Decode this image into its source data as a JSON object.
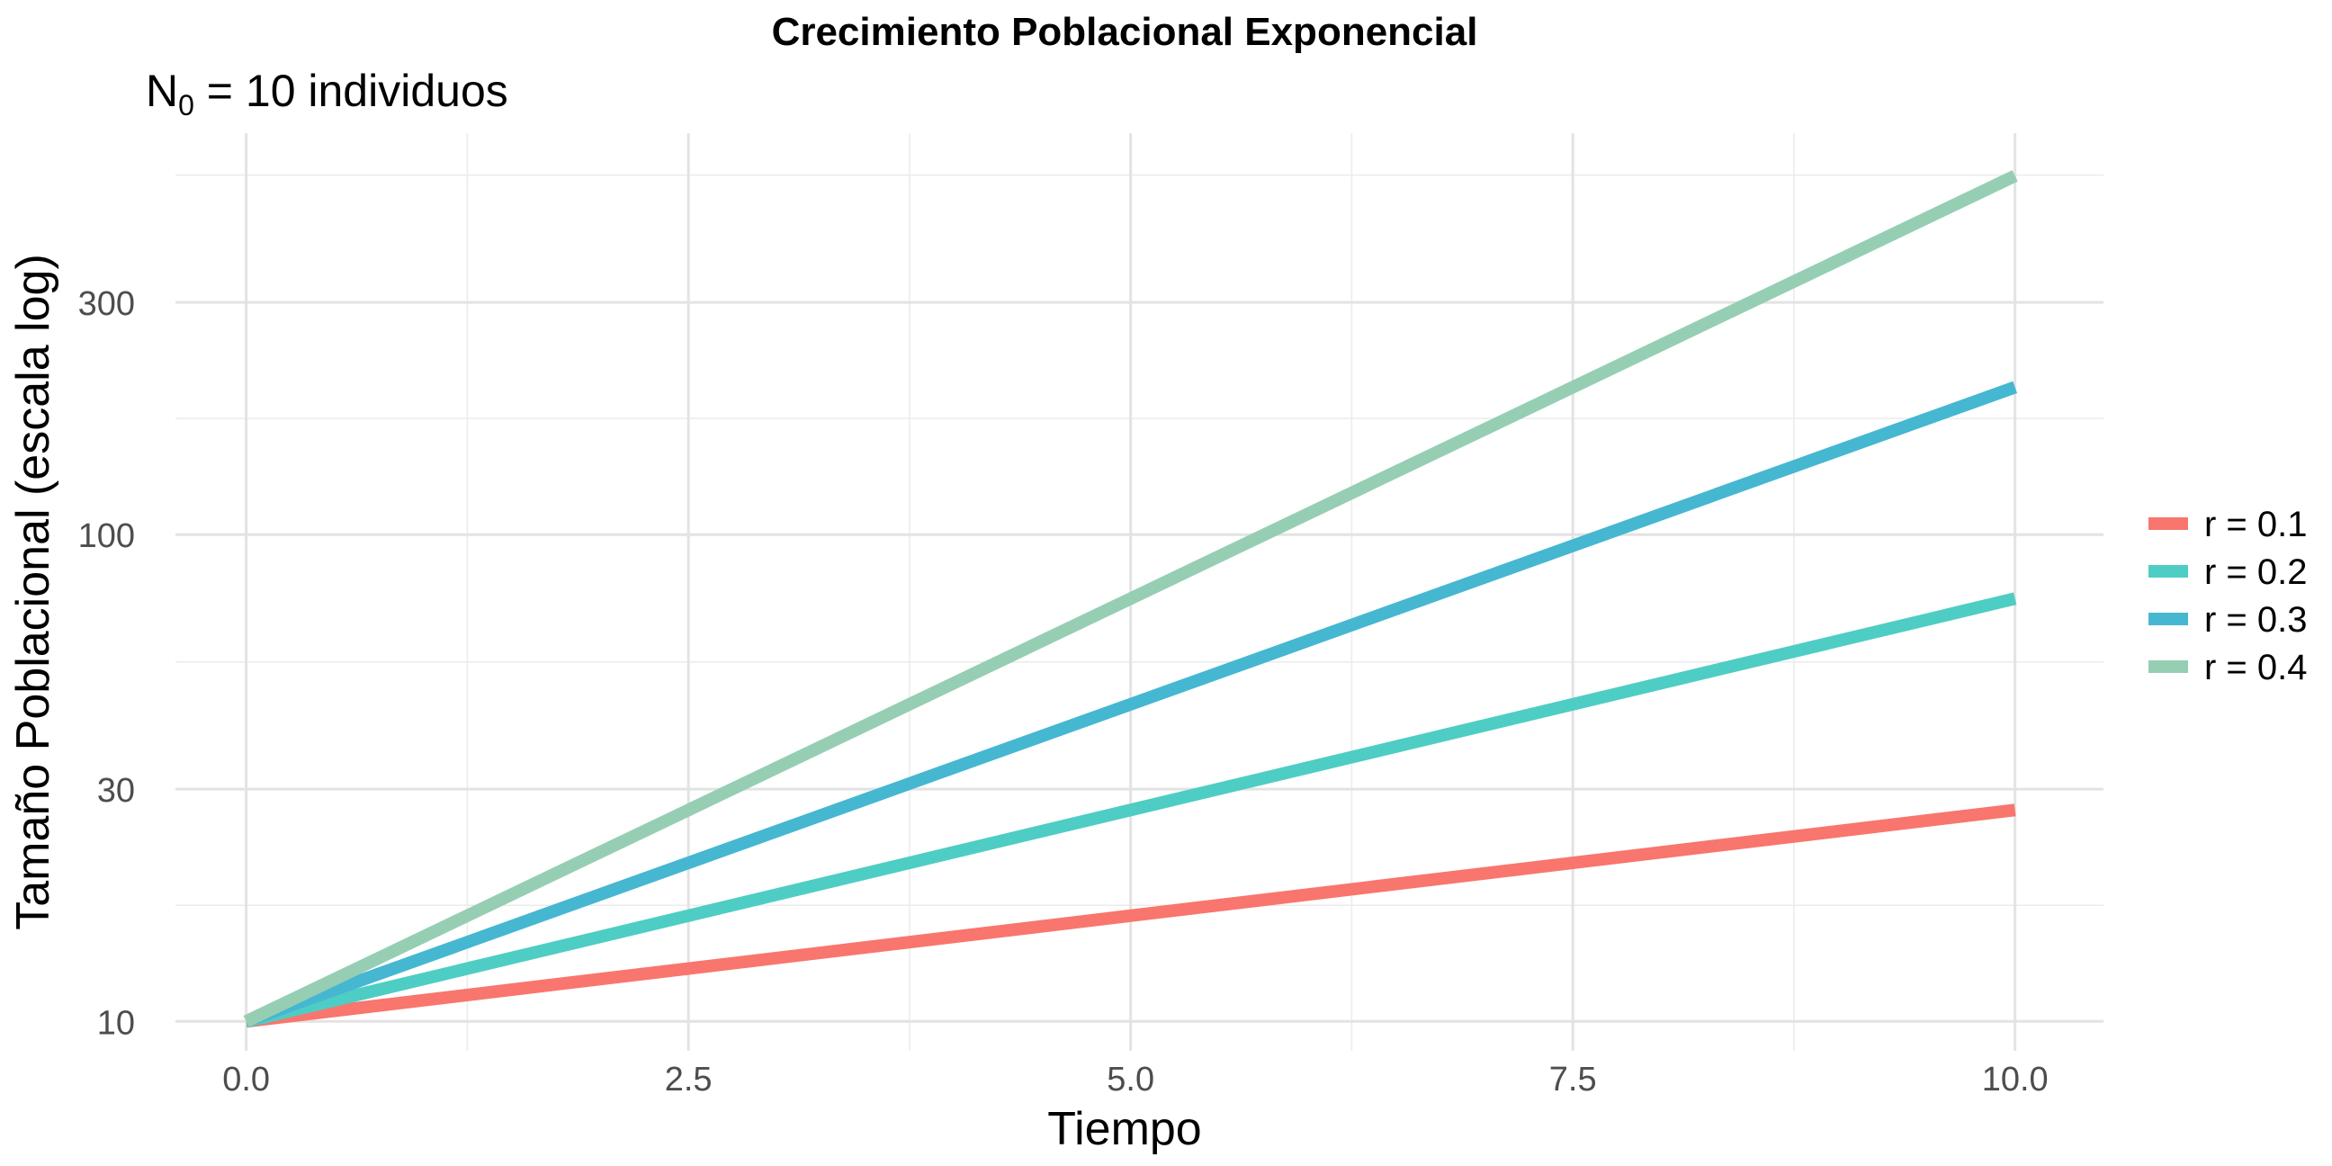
{
  "chart_data": {
    "type": "line",
    "title": "Crecimiento Poblacional Exponencial",
    "subtitle_main": "N",
    "subtitle_sub": "0",
    "subtitle_rest": " = 10 individuos",
    "xlabel": "Tiempo",
    "ylabel": "Tamaño Poblacional (escala log)",
    "x_scale": "linear",
    "y_scale": "log10",
    "xlim": [
      -0.4,
      10.5
    ],
    "ylim": [
      8.7,
      668
    ],
    "x_ticks": [
      0,
      2.5,
      5,
      7.5,
      10
    ],
    "x_tick_labels": [
      "0.0",
      "2.5",
      "5.0",
      "7.5",
      "10.0"
    ],
    "x_minor_ticks": [
      1.25,
      3.75,
      6.25,
      8.75
    ],
    "y_ticks": [
      10,
      30,
      100,
      300
    ],
    "y_tick_labels": [
      "10",
      "30",
      "100",
      "300"
    ],
    "y_minor_ticks": [
      17.32,
      54.77,
      173.2,
      547.7
    ],
    "grid": true,
    "legend_position": "right",
    "series": [
      {
        "name": "r = 0.1",
        "color": "#F8766D",
        "x": [
          0,
          10
        ],
        "y": [
          10,
          27.18
        ]
      },
      {
        "name": "r = 0.2",
        "color": "#4ECDC4",
        "x": [
          0,
          10
        ],
        "y": [
          10,
          73.89
        ]
      },
      {
        "name": "r = 0.3",
        "color": "#45B7D1",
        "x": [
          0,
          10
        ],
        "y": [
          10,
          200.86
        ]
      },
      {
        "name": "r = 0.4",
        "color": "#96CEB4",
        "x": [
          0,
          10
        ],
        "y": [
          10,
          545.98
        ]
      }
    ]
  }
}
